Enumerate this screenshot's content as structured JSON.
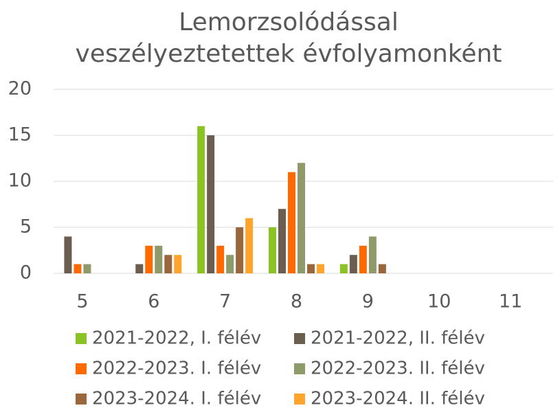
{
  "chart_data": {
    "type": "bar",
    "title": [
      "Lemorzsolódással",
      "veszélyeztetettek évfolyamonként"
    ],
    "categories": [
      "5",
      "6",
      "7",
      "8",
      "9",
      "10",
      "11"
    ],
    "series": [
      {
        "name": "2021-2022, I. félév",
        "color": "#8cc324",
        "values": [
          0,
          0,
          16,
          5,
          1,
          0,
          0
        ]
      },
      {
        "name": "2021-2022, II. félév",
        "color": "#6b5d4f",
        "values": [
          4,
          1,
          15,
          7,
          2,
          0,
          0
        ]
      },
      {
        "name": "2022-2023. I. félév",
        "color": "#ff6a00",
        "values": [
          1,
          3,
          3,
          11,
          3,
          0,
          0
        ]
      },
      {
        "name": "2022-2023. II. félév",
        "color": "#8e9a6a",
        "values": [
          1,
          3,
          2,
          12,
          4,
          0,
          0
        ]
      },
      {
        "name": "2023-2024. I. félév",
        "color": "#9a673c",
        "values": [
          0,
          2,
          5,
          1,
          1,
          0,
          0
        ]
      },
      {
        "name": "2023-2024. II. félév",
        "color": "#ffa42d",
        "values": [
          0,
          2,
          6,
          1,
          0,
          0,
          0
        ]
      }
    ],
    "ylim": [
      0,
      20
    ],
    "yticks": [
      0,
      5,
      10,
      15,
      20
    ],
    "grid": true
  }
}
